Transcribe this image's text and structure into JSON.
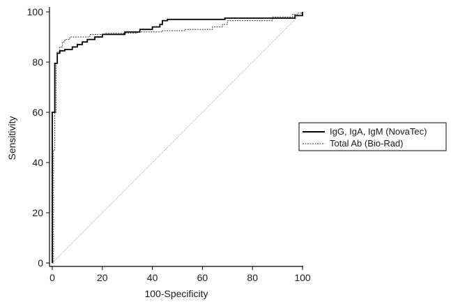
{
  "chart_data": {
    "type": "line",
    "xlabel": "100-Specificity",
    "ylabel": "Sensitivity",
    "xlim": [
      0,
      100
    ],
    "ylim": [
      0,
      100
    ],
    "xticks": [
      0,
      20,
      40,
      60,
      80,
      100
    ],
    "yticks": [
      0,
      20,
      40,
      60,
      80,
      100
    ],
    "grid": false,
    "legend_position": "right",
    "series": [
      {
        "name": "IgG, IgA, IgM (NovaTec)",
        "style": "solid",
        "color": "#000000",
        "points": [
          [
            0,
            0
          ],
          [
            0,
            60
          ],
          [
            1,
            60
          ],
          [
            1,
            79.5
          ],
          [
            2,
            79.5
          ],
          [
            2,
            83.5
          ],
          [
            3,
            83.5
          ],
          [
            3,
            84.5
          ],
          [
            5,
            84.5
          ],
          [
            5,
            85
          ],
          [
            8,
            85
          ],
          [
            8,
            86
          ],
          [
            10,
            86
          ],
          [
            10,
            87
          ],
          [
            12,
            87
          ],
          [
            12,
            88
          ],
          [
            14,
            88
          ],
          [
            14,
            89
          ],
          [
            17,
            89
          ],
          [
            17,
            90
          ],
          [
            20,
            90
          ],
          [
            20,
            91
          ],
          [
            29,
            91
          ],
          [
            29,
            92
          ],
          [
            35,
            92
          ],
          [
            35,
            93
          ],
          [
            40,
            93
          ],
          [
            40,
            94
          ],
          [
            43,
            94
          ],
          [
            43,
            95
          ],
          [
            44,
            95
          ],
          [
            44,
            96.5
          ],
          [
            46,
            96.5
          ],
          [
            46,
            97
          ],
          [
            69,
            97
          ],
          [
            69,
            97.5
          ],
          [
            97,
            97.5
          ],
          [
            97,
            98.5
          ],
          [
            100,
            98.5
          ],
          [
            100,
            100
          ]
        ]
      },
      {
        "name": "Total Ab (Bio-Rad)",
        "style": "dashed",
        "color": "#333333",
        "points": [
          [
            0,
            0
          ],
          [
            0.5,
            0
          ],
          [
            0.5,
            45
          ],
          [
            1,
            45
          ],
          [
            1,
            60
          ],
          [
            1.5,
            60
          ],
          [
            1.5,
            79.5
          ],
          [
            2,
            79.5
          ],
          [
            2,
            84
          ],
          [
            3,
            84
          ],
          [
            3,
            86
          ],
          [
            4,
            86
          ],
          [
            4,
            88
          ],
          [
            5,
            88
          ],
          [
            5,
            89
          ],
          [
            7,
            89
          ],
          [
            7,
            90
          ],
          [
            15,
            90
          ],
          [
            15,
            91
          ],
          [
            21,
            91
          ],
          [
            21,
            91.5
          ],
          [
            34,
            91.5
          ],
          [
            34,
            92
          ],
          [
            44,
            92
          ],
          [
            44,
            92.5
          ],
          [
            53,
            92.5
          ],
          [
            53,
            93
          ],
          [
            64,
            93
          ],
          [
            64,
            94
          ],
          [
            68,
            94
          ],
          [
            68,
            95
          ],
          [
            70,
            95
          ],
          [
            70,
            96.5
          ],
          [
            88,
            96.5
          ],
          [
            88,
            98
          ],
          [
            96,
            98
          ],
          [
            96,
            99
          ],
          [
            98,
            99
          ],
          [
            98,
            99.5
          ],
          [
            100,
            99.5
          ],
          [
            100,
            100
          ]
        ]
      },
      {
        "role": "reference-diagonal",
        "style": "dotted",
        "color": "#808080",
        "points": [
          [
            0,
            0
          ],
          [
            100,
            100
          ]
        ]
      }
    ]
  }
}
